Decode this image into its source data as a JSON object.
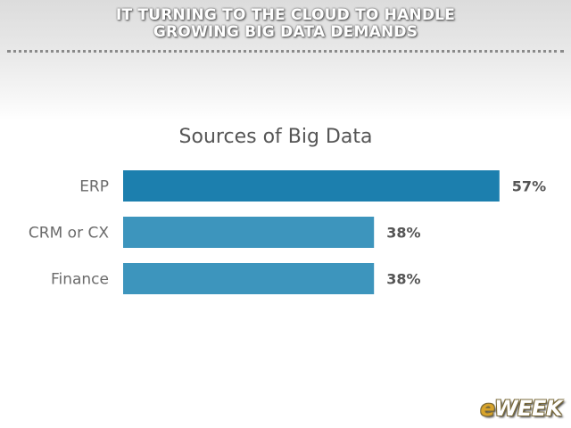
{
  "header": {
    "line1": "IT TURNING TO THE CLOUD TO HANDLE",
    "line2": "GROWING BIG DATA DEMANDS"
  },
  "brand": {
    "prefix": "e",
    "name": "WEEK"
  },
  "colors": {
    "bar_primary": "#1c7fae",
    "bar_secondary": "#3d95bd",
    "label": "#6b6b6b",
    "value": "#555555",
    "title": "#555555"
  },
  "chart_data": {
    "type": "bar",
    "orientation": "horizontal",
    "title": "Sources of Big Data",
    "categories": [
      "ERP",
      "CRM or CX",
      "Finance"
    ],
    "values": [
      57,
      38,
      38
    ],
    "value_labels": [
      "57%",
      "38%",
      "38%"
    ],
    "xlim": [
      0,
      100
    ],
    "unit": "%",
    "grid": false,
    "legend": "none"
  }
}
